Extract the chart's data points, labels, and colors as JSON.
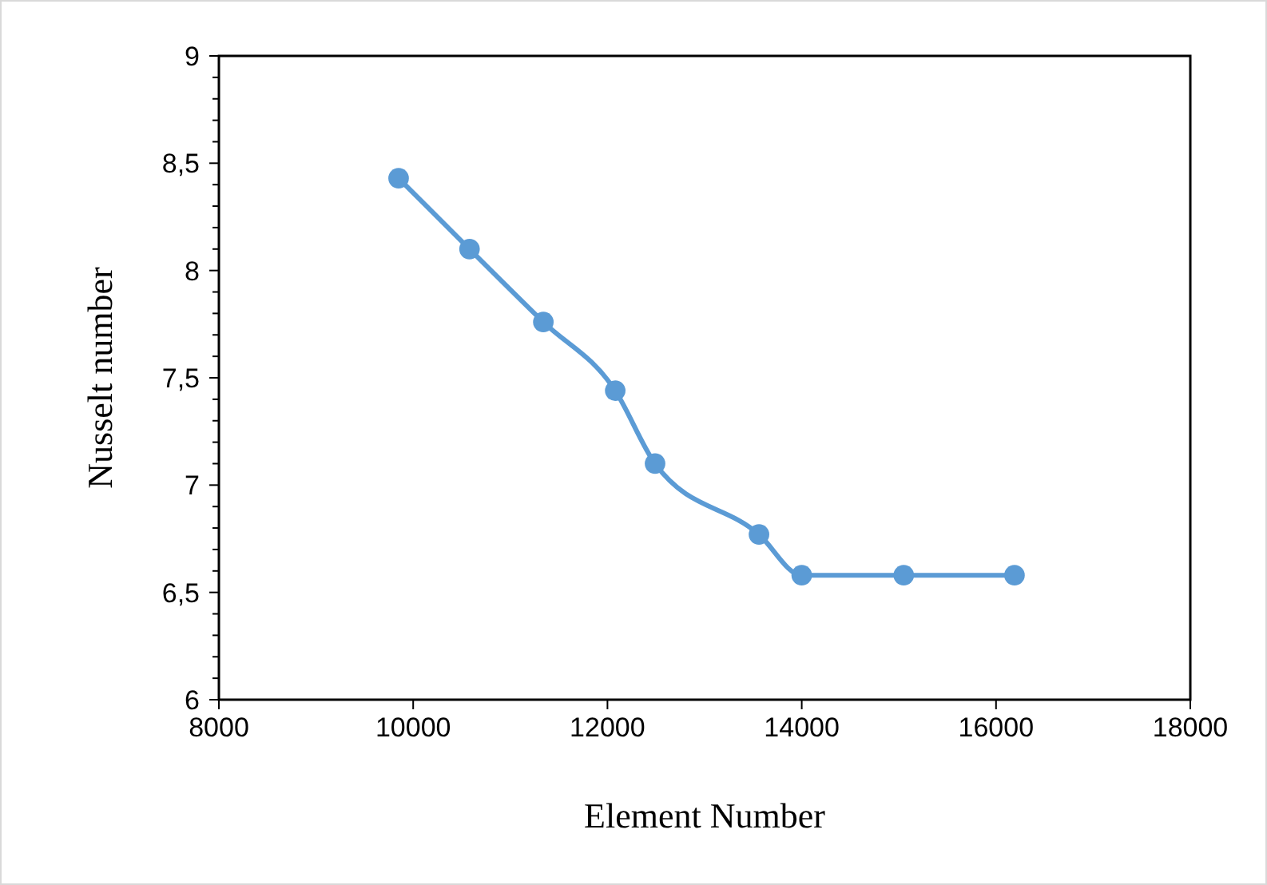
{
  "chart_data": {
    "type": "line",
    "xlabel": "Element Number",
    "ylabel": "Nusselt number",
    "x": [
      9850,
      10580,
      11340,
      12080,
      12490,
      13560,
      14000,
      15050,
      16190
    ],
    "series": [
      {
        "color": "#5b9bd5",
        "values": [
          8.43,
          8.1,
          7.76,
          7.44,
          7.1,
          6.77,
          6.58,
          6.58,
          6.58
        ]
      }
    ],
    "xlim": [
      8000,
      18000
    ],
    "xticks": [
      8000,
      10000,
      12000,
      14000,
      16000,
      18000
    ],
    "ylim": [
      6,
      9
    ],
    "yticks": [
      {
        "value": 6,
        "label": "6"
      },
      {
        "value": 6.1,
        "label": null
      },
      {
        "value": 6.2,
        "label": null
      },
      {
        "value": 6.3,
        "label": null
      },
      {
        "value": 6.4,
        "label": null
      },
      {
        "value": 6.5,
        "label": "6,5"
      },
      {
        "value": 6.6,
        "label": null
      },
      {
        "value": 6.7,
        "label": null
      },
      {
        "value": 6.8,
        "label": null
      },
      {
        "value": 6.9,
        "label": null
      },
      {
        "value": 7,
        "label": "7"
      },
      {
        "value": 7.1,
        "label": null
      },
      {
        "value": 7.2,
        "label": null
      },
      {
        "value": 7.3,
        "label": null
      },
      {
        "value": 7.4,
        "label": null
      },
      {
        "value": 7.5,
        "label": "7,5"
      },
      {
        "value": 7.6,
        "label": null
      },
      {
        "value": 7.7,
        "label": null
      },
      {
        "value": 7.8,
        "label": null
      },
      {
        "value": 7.9,
        "label": null
      },
      {
        "value": 8,
        "label": "8"
      },
      {
        "value": 8.1,
        "label": null
      },
      {
        "value": 8.2,
        "label": null
      },
      {
        "value": 8.3,
        "label": null
      },
      {
        "value": 8.4,
        "label": null
      },
      {
        "value": 8.5,
        "label": "8,5"
      },
      {
        "value": 8.6,
        "label": null
      },
      {
        "value": 8.7,
        "label": null
      },
      {
        "value": 8.8,
        "label": null
      },
      {
        "value": 8.9,
        "label": null
      },
      {
        "value": 9,
        "label": "9"
      }
    ],
    "marker": "circle",
    "line_style": "solid"
  }
}
